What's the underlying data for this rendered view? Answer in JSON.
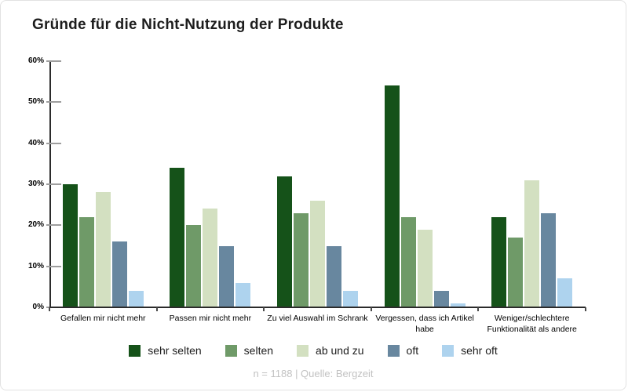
{
  "title": "Gründe für die Nicht-Nutzung der Produkte",
  "footer": "n = 1188 | Quelle: Bergzeit",
  "chart_data": {
    "type": "bar",
    "title": "Gründe für die Nicht-Nutzung der Produkte",
    "categories": [
      "Gefallen mir nicht mehr",
      "Passen mir nicht mehr",
      "Zu viel Auswahl im Schrank",
      "Vergessen, dass ich Artikel habe",
      "Weniger/schlechtere Funktionalität als andere"
    ],
    "series": [
      {
        "name": "sehr selten",
        "color": "#155219",
        "values": [
          30,
          34,
          32,
          54,
          22
        ]
      },
      {
        "name": "selten",
        "color": "#6f9a68",
        "values": [
          22,
          20,
          23,
          22,
          17
        ]
      },
      {
        "name": "ab und zu",
        "color": "#d3e0c1",
        "values": [
          28,
          24,
          26,
          19,
          31
        ]
      },
      {
        "name": "oft",
        "color": "#68879f",
        "values": [
          16,
          15,
          15,
          4,
          23
        ]
      },
      {
        "name": "sehr oft",
        "color": "#aed3ee",
        "values": [
          4,
          6,
          4,
          1,
          7
        ]
      }
    ],
    "ylabel": "",
    "xlabel": "",
    "ylim": [
      0,
      60
    ],
    "y_ticks": [
      {
        "value": 0,
        "label": "0%"
      },
      {
        "value": 10,
        "label": "10%"
      },
      {
        "value": 20,
        "label": "20%"
      },
      {
        "value": 30,
        "label": "30%"
      },
      {
        "value": 40,
        "label": "40%"
      },
      {
        "value": 50,
        "label": "50%"
      },
      {
        "value": 60,
        "label": "60%"
      }
    ],
    "grid": false,
    "legend_position": "bottom",
    "note": "n = 1188 | Quelle: Bergzeit"
  }
}
